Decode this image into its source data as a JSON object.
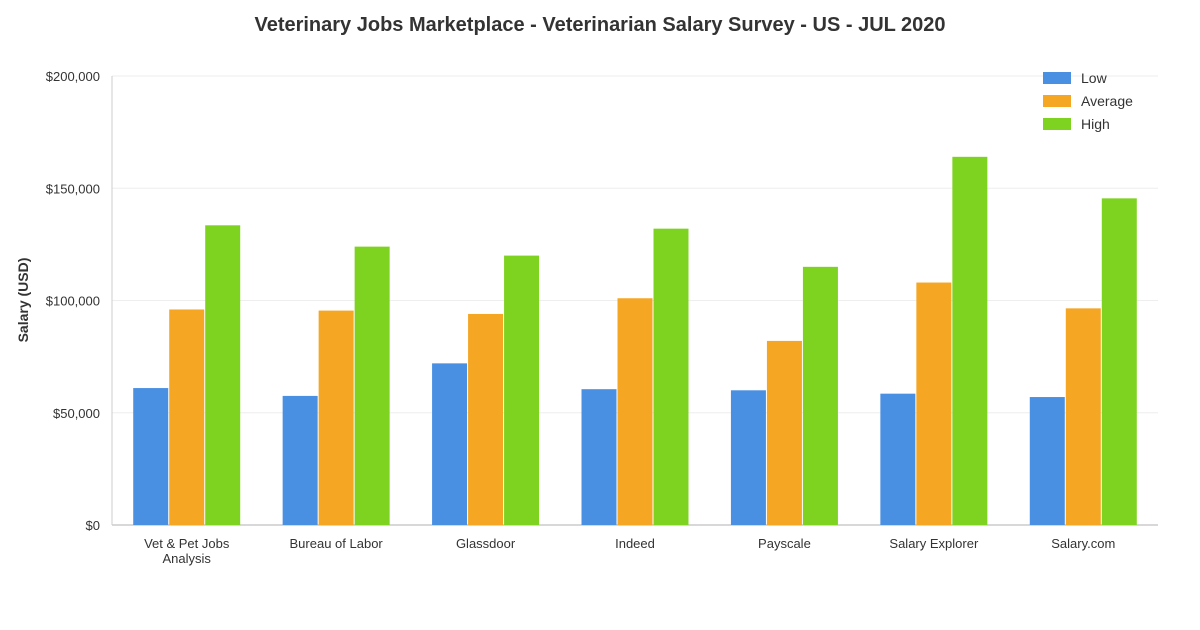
{
  "chart_data": {
    "type": "bar",
    "title": "Veterinary Jobs Marketplace - Veterinarian Salary Survey - US - JUL 2020",
    "xlabel": "",
    "ylabel": "Salary (USD)",
    "ylim": [
      0,
      200000
    ],
    "yticks": [
      {
        "value": 0,
        "label": "$0"
      },
      {
        "value": 50000,
        "label": "$50,000"
      },
      {
        "value": 100000,
        "label": "$100,000"
      },
      {
        "value": 150000,
        "label": "$150,000"
      },
      {
        "value": 200000,
        "label": "$200,000"
      }
    ],
    "categories": [
      "Vet & Pet Jobs Analysis",
      "Bureau of Labor",
      "Glassdoor",
      "Indeed",
      "Payscale",
      "Salary Explorer",
      "Salary.com"
    ],
    "category_lines": [
      [
        "Vet & Pet Jobs",
        "Analysis"
      ],
      [
        "Bureau of Labor"
      ],
      [
        "Glassdoor"
      ],
      [
        "Indeed"
      ],
      [
        "Payscale"
      ],
      [
        "Salary Explorer"
      ],
      [
        "Salary.com"
      ]
    ],
    "series": [
      {
        "name": "Low",
        "color": "#4a90e2",
        "values": [
          61000,
          57500,
          72000,
          60500,
          60000,
          58500,
          57000
        ]
      },
      {
        "name": "Average",
        "color": "#f5a623",
        "values": [
          96000,
          95500,
          94000,
          101000,
          82000,
          108000,
          96500
        ]
      },
      {
        "name": "High",
        "color": "#7ed321",
        "values": [
          133500,
          124000,
          120000,
          132000,
          115000,
          164000,
          145500
        ]
      }
    ],
    "grid": true,
    "legend": "top-right"
  }
}
